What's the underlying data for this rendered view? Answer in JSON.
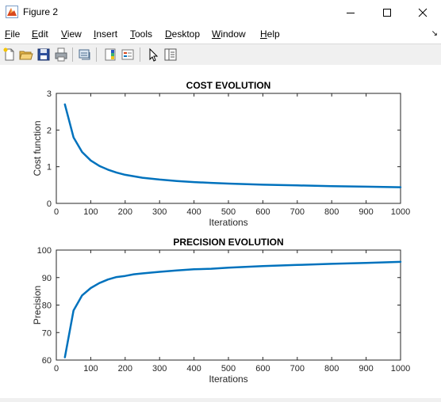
{
  "window": {
    "title": "Figure 2"
  },
  "menu": [
    "File",
    "Edit",
    "View",
    "Insert",
    "Tools",
    "Desktop",
    "Window",
    "Help"
  ],
  "menu_underline": [
    "F",
    "E",
    "V",
    "I",
    "T",
    "D",
    "W",
    "H"
  ],
  "toolbar_icons": [
    "new-figure-icon",
    "open-file-icon",
    "save-icon",
    "print-icon",
    "link-plot-icon",
    "insert-colorbar-icon",
    "insert-legend-icon",
    "edit-plot-icon",
    "property-inspector-icon"
  ],
  "colors": {
    "line": "#0072bd",
    "axes": "#262626",
    "grid_bg": "#ffffff",
    "figure_bg": "#ffffff"
  },
  "chart_data": [
    {
      "type": "line",
      "title": "COST EVOLUTION",
      "xlabel": "Iterations",
      "ylabel": "Cost function",
      "xlim": [
        0,
        1000
      ],
      "ylim": [
        0,
        3
      ],
      "xticks": [
        0,
        100,
        200,
        300,
        400,
        500,
        600,
        700,
        800,
        900,
        1000
      ],
      "yticks": [
        0,
        1,
        2,
        3
      ],
      "grid": false,
      "series": [
        {
          "x": [
            25,
            50,
            75,
            100,
            125,
            150,
            175,
            200,
            250,
            300,
            350,
            400,
            450,
            500,
            600,
            700,
            800,
            900,
            1000
          ],
          "values": [
            2.7,
            1.8,
            1.4,
            1.17,
            1.02,
            0.92,
            0.84,
            0.78,
            0.7,
            0.65,
            0.61,
            0.58,
            0.56,
            0.54,
            0.51,
            0.49,
            0.47,
            0.455,
            0.44
          ]
        }
      ]
    },
    {
      "type": "line",
      "title": "PRECISION EVOLUTION",
      "xlabel": "Iterations",
      "ylabel": "Precision",
      "xlim": [
        0,
        1000
      ],
      "ylim": [
        60,
        100
      ],
      "xticks": [
        0,
        100,
        200,
        300,
        400,
        500,
        600,
        700,
        800,
        900,
        1000
      ],
      "yticks": [
        60,
        70,
        80,
        90,
        100
      ],
      "grid": false,
      "series": [
        {
          "x": [
            25,
            50,
            75,
            100,
            125,
            150,
            175,
            200,
            225,
            250,
            300,
            350,
            400,
            450,
            500,
            550,
            600,
            700,
            800,
            900,
            1000
          ],
          "values": [
            61,
            78,
            83.5,
            86.2,
            88,
            89.3,
            90.2,
            90.6,
            91.2,
            91.5,
            92.1,
            92.6,
            93,
            93.2,
            93.6,
            93.9,
            94.2,
            94.6,
            95,
            95.3,
            95.7
          ]
        }
      ]
    }
  ]
}
